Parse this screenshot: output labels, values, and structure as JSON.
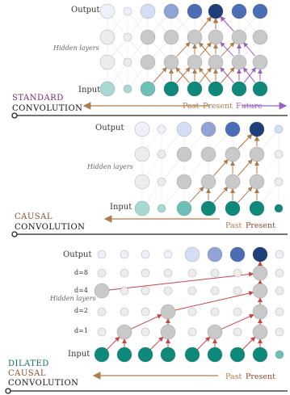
{
  "colors": {
    "input_dark": "#0f8a7a",
    "input_light": "#a8d8d3",
    "input_mid": "#6cc0b6",
    "hidden_active": "#c9c9c9",
    "hidden_inactive": "#ececec",
    "output_dark": "#1f3f7a",
    "output_mid": "#4a6db5",
    "output_soft": "#8fa3d6",
    "output_pale": "#d3def5",
    "output_faint": "#eef0fa",
    "arrow_past": "#b07a4a",
    "arrow_future": "#9a5fbf",
    "arrow_red": "#cc4444",
    "standard_title": "#7a2b5c",
    "causal_title": "#8b4a2a",
    "dilated_title": "#0d6e5e",
    "timeline": "#222222",
    "axis_past": "#b07a4a",
    "axis_future": "#9a5fbf"
  },
  "panels": [
    {
      "id": "standard",
      "title_line1": "STANDARD",
      "title_line2": "CONVOLUTION",
      "output_label": "Output",
      "hidden_label": "Hidden layers",
      "input_label": "Input",
      "time_labels": {
        "past": "Past",
        "present": "Present",
        "future": "Future"
      }
    },
    {
      "id": "causal",
      "title_line1": "CAUSAL",
      "title_line2": "CONVOLUTION",
      "output_label": "Output",
      "hidden_label": "Hidden layers",
      "input_label": "Input",
      "time_labels": {
        "past": "Past",
        "present": "Present"
      }
    },
    {
      "id": "dilated",
      "title_line1": "DILATED",
      "title_line2": "CAUSAL",
      "title_line3": "CONVOLUTION",
      "output_label": "Output",
      "hidden_label": "Hidden layers",
      "input_label": "Input",
      "dilation_labels": [
        "d=8",
        "d=4",
        "d=2",
        "d=1"
      ],
      "time_labels": {
        "past": "Past",
        "present": "Present"
      }
    }
  ]
}
